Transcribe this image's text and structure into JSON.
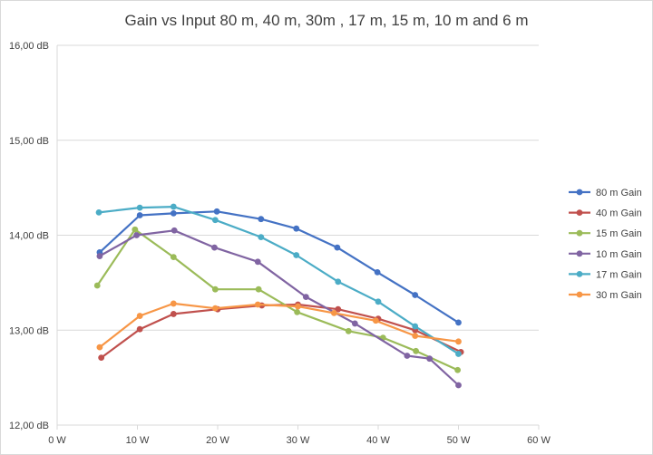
{
  "chart_data": {
    "type": "scatter",
    "title": "Gain vs Input 80 m, 40 m, 30m , 17 m, 15 m, 10 m and 6 m",
    "xlabel": "",
    "ylabel": "",
    "xlim": [
      0,
      60
    ],
    "ylim": [
      12,
      16
    ],
    "xticks": [
      0,
      10,
      20,
      30,
      40,
      50,
      60
    ],
    "yticks": [
      12,
      13,
      14,
      15,
      16
    ],
    "xtick_labels": [
      "0 W",
      "10 W",
      "20 W",
      "30 W",
      "40 W",
      "50 W",
      "60 W"
    ],
    "ytick_labels": [
      "12,00 dB",
      "13,00 dB",
      "14,00 dB",
      "15,00 dB",
      "16,00 dB"
    ],
    "grid": "horizontal",
    "legend": "right",
    "series": [
      {
        "name": "80 m Gain",
        "color": "#4472C4",
        "x": [
          5.3,
          10.3,
          14.5,
          19.9,
          25.4,
          29.8,
          34.9,
          39.9,
          44.6,
          50.0
        ],
        "y": [
          13.82,
          14.21,
          14.23,
          14.25,
          14.17,
          14.07,
          13.87,
          13.61,
          13.37,
          13.08
        ]
      },
      {
        "name": "40 m Gain",
        "color": "#C0504D",
        "x": [
          5.5,
          10.3,
          14.5,
          20.0,
          25.5,
          30.0,
          35.0,
          40.0,
          44.6,
          50.3
        ],
        "y": [
          12.71,
          13.01,
          13.17,
          13.22,
          13.26,
          13.27,
          13.22,
          13.12,
          13.0,
          12.77
        ]
      },
      {
        "name": "15 m Gain",
        "color": "#9BBB59",
        "x": [
          5.0,
          9.7,
          14.5,
          19.7,
          25.1,
          29.9,
          36.3,
          40.6,
          44.7,
          49.9
        ],
        "y": [
          13.47,
          14.06,
          13.77,
          13.43,
          13.43,
          13.19,
          12.99,
          12.92,
          12.78,
          12.58
        ]
      },
      {
        "name": "10 m Gain",
        "color": "#8064A2",
        "x": [
          5.3,
          9.9,
          14.6,
          19.6,
          25.0,
          31.0,
          37.1,
          43.6,
          46.4,
          50.0
        ],
        "y": [
          13.78,
          14.0,
          14.05,
          13.87,
          13.72,
          13.35,
          13.07,
          12.73,
          12.7,
          12.42
        ]
      },
      {
        "name": "17 m Gain",
        "color": "#4BACC6",
        "x": [
          5.2,
          10.3,
          14.5,
          19.7,
          25.4,
          29.8,
          35.0,
          40.0,
          44.6,
          50.0
        ],
        "y": [
          14.24,
          14.29,
          14.3,
          14.16,
          13.98,
          13.79,
          13.51,
          13.3,
          13.04,
          12.75
        ]
      },
      {
        "name": "30 m Gain",
        "color": "#F79646",
        "x": [
          5.3,
          10.3,
          14.5,
          19.7,
          25.0,
          30.0,
          34.5,
          39.7,
          44.6,
          50.0
        ],
        "y": [
          12.82,
          13.15,
          13.28,
          13.23,
          13.27,
          13.25,
          13.18,
          13.1,
          12.94,
          12.88
        ]
      }
    ]
  }
}
